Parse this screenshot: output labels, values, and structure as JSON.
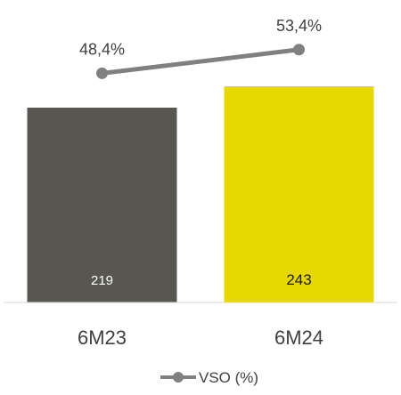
{
  "chart_data": {
    "type": "bar",
    "categories": [
      "6M23",
      "6M24"
    ],
    "bar_values": [
      219,
      243
    ],
    "bar_labels": [
      "219",
      "243"
    ],
    "bar_colors": [
      "#575750",
      "#e6d800"
    ],
    "bar_label_colors": [
      "#ffffff",
      "#1a1a1a"
    ],
    "line_series": {
      "name": "VSO (%)",
      "values": [
        48.4,
        53.4
      ],
      "labels": [
        "48,4%",
        "53,4%"
      ],
      "color": "#808080"
    },
    "bar_ylim": [
      0,
      330
    ],
    "line_ylim": [
      0,
      62
    ],
    "grid": false,
    "legend_position": "bottom-center",
    "title": "",
    "xlabel": "",
    "ylabel": ""
  }
}
